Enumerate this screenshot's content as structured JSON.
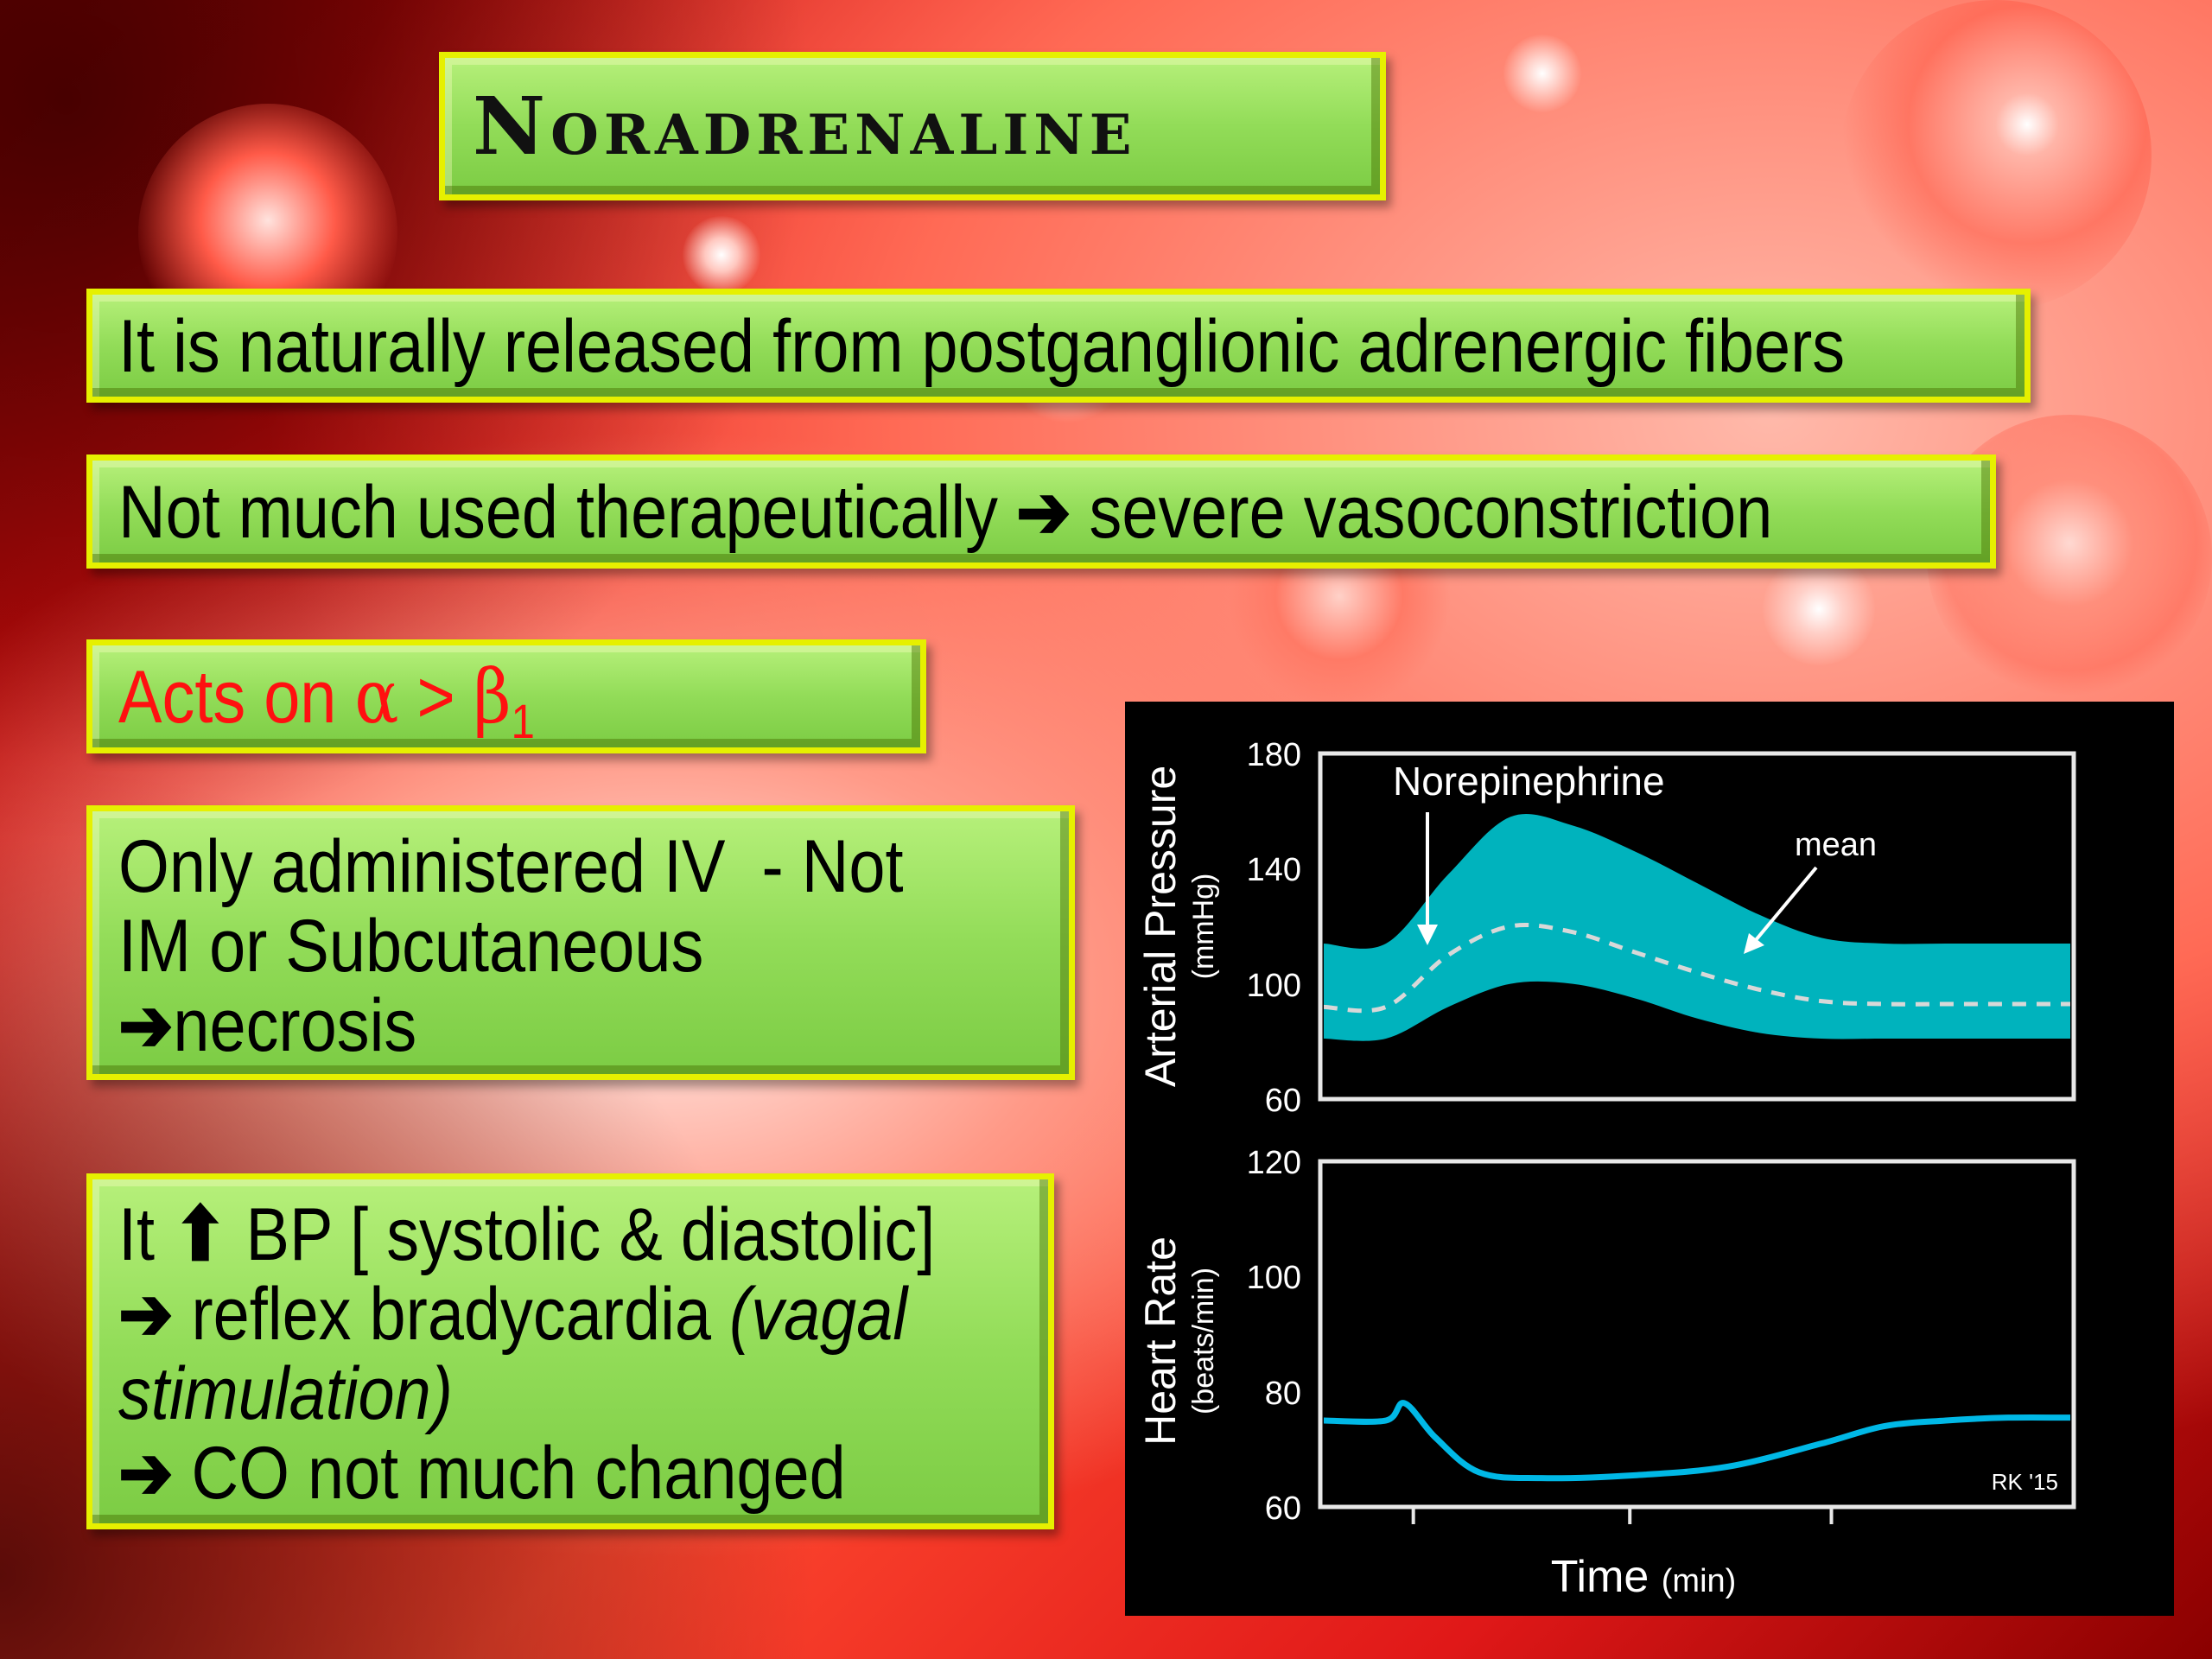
{
  "slide": {
    "title": "Noradrenaline",
    "box1": "It is naturally released from postganglionic adrenergic fibers",
    "box2": {
      "before": "Not much used therapeutically",
      "after": "severe vasoconstriction"
    },
    "box3": {
      "prefix": "Acts on ",
      "alpha": "α",
      "gt": " > ",
      "beta": "β",
      "sub": "1"
    },
    "box4": {
      "line1": "Only administered IV  - Not",
      "line2": "IM or Subcutaneous",
      "line3": "necrosis"
    },
    "box5": {
      "line1_a": "It",
      "line1_b": "BP [ systolic & diastolic]",
      "line2_a": "reflex bradycardia",
      "line2_b": "(vagal",
      "line3": "stimulation)",
      "line4": "CO not much changed"
    },
    "arrow_glyph": "➔",
    "up_glyph": "⬆"
  },
  "chart_data": [
    {
      "type": "area",
      "panel": "top",
      "ylabel": "Arterial Pressure",
      "yunit": "(mmHg)",
      "ylim": [
        60,
        180
      ],
      "yticks": [
        "180",
        "140",
        "100",
        "60"
      ],
      "annotation": "Norepinephrine",
      "mean_label": "mean",
      "x": [
        0,
        1,
        2,
        3,
        4,
        5,
        6,
        7,
        8,
        9,
        10,
        11,
        12
      ],
      "systolic": [
        114,
        114,
        138,
        158,
        155,
        146,
        135,
        124,
        116,
        114,
        114,
        114,
        114
      ],
      "diastolic": [
        81,
        81,
        92,
        100,
        100,
        95,
        88,
        83,
        81,
        81,
        81,
        81,
        81
      ],
      "mean": [
        92,
        92,
        110,
        120,
        118,
        111,
        104,
        98,
        94,
        93,
        93,
        93,
        93
      ]
    },
    {
      "type": "line",
      "panel": "bottom",
      "ylabel": "Heart Rate",
      "yunit": "(beats/min)",
      "ylim": [
        60,
        120
      ],
      "yticks": [
        "120",
        "100",
        "80",
        "60"
      ],
      "xlabel": "Time",
      "xunit": "(min)",
      "credit": "RK '15",
      "x": [
        0,
        1,
        1.3,
        1.8,
        2.5,
        3.5,
        5,
        6.5,
        8,
        9,
        10,
        11,
        12
      ],
      "values": [
        75,
        75,
        78,
        72,
        66,
        65,
        65.5,
        67,
        71,
        74,
        75,
        75.5,
        75.5
      ]
    }
  ],
  "colors": {
    "box_fill": "#92dc58",
    "box_border": "#e6f000",
    "area_fill": "#00b3bd",
    "hr_line": "#00b8e6",
    "red_text": "#ff1010"
  }
}
